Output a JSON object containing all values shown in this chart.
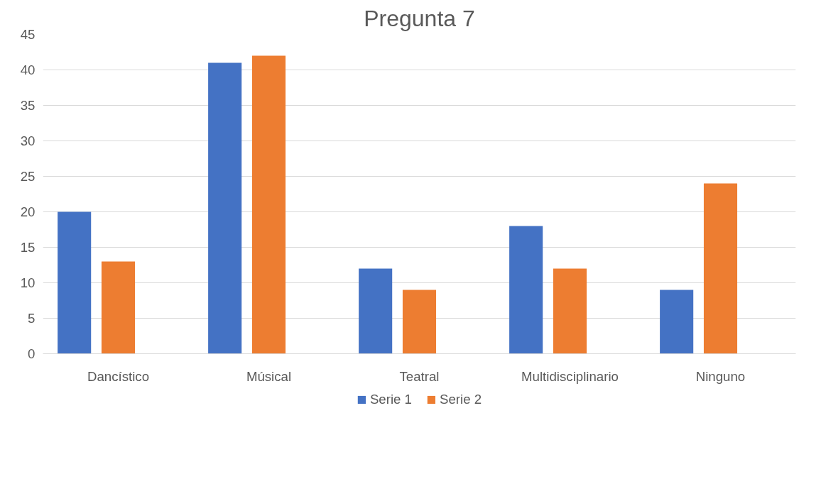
{
  "chart_data": {
    "type": "bar",
    "title": "Pregunta 7",
    "categories": [
      "Dancístico",
      "Músical",
      "Teatral",
      "Multidisciplinario",
      "Ninguno"
    ],
    "series": [
      {
        "name": "Serie 1",
        "color": "#4472c4",
        "values": [
          20,
          41,
          12,
          18,
          9
        ]
      },
      {
        "name": "Serie 2",
        "color": "#ed7d31",
        "values": [
          13,
          42,
          9,
          12,
          24
        ]
      }
    ],
    "ylim": [
      0,
      45
    ],
    "yticks": [
      0,
      5,
      10,
      15,
      20,
      25,
      30,
      35,
      40,
      45
    ],
    "grid": "y",
    "legend": "bottom"
  }
}
